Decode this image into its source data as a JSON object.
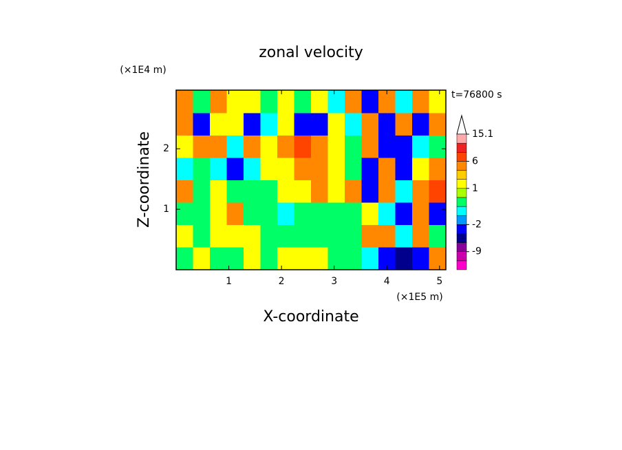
{
  "chart_data": {
    "type": "contourf",
    "title": "zonal velocity",
    "xlabel": "X-coordinate",
    "ylabel": "Z-coordinate",
    "x_unit": "(×1E5 m)",
    "y_unit": "(×1E4 m)",
    "annotation": "t=76800 s",
    "xlim": [
      0,
      5.12
    ],
    "ylim": [
      0,
      2.97
    ],
    "xticks": [
      1,
      2,
      3,
      4,
      5
    ],
    "yticks": [
      1,
      2
    ],
    "x": [
      0.16,
      0.48,
      0.8,
      1.12,
      1.44,
      1.76,
      2.08,
      2.4,
      2.72,
      3.04,
      3.36,
      3.68,
      4.0,
      4.32,
      4.64,
      4.96
    ],
    "y": [
      0.19,
      0.56,
      0.93,
      1.3,
      1.67,
      2.04,
      2.41,
      2.78
    ],
    "values": [
      [
        0,
        1.5,
        0,
        0,
        1.5,
        0,
        1.5,
        1.5,
        1.5,
        0,
        0,
        -0.8,
        -3,
        -5,
        -3,
        4.5
      ],
      [
        1.5,
        0,
        1.5,
        1.5,
        1.5,
        0,
        0,
        0,
        0,
        0,
        0,
        4.5,
        4.5,
        -0.8,
        4.5,
        0
      ],
      [
        0,
        0,
        1.5,
        4.5,
        0,
        0,
        -0.8,
        0,
        0,
        0,
        0,
        1.5,
        -0.8,
        -3,
        4.5,
        -3
      ],
      [
        4.5,
        0,
        1.5,
        0,
        0,
        0,
        1.5,
        1.5,
        4.5,
        1.5,
        4.5,
        -3,
        4.5,
        -0.8,
        4.5,
        8
      ],
      [
        -0.8,
        0,
        -0.8,
        -3,
        -0.8,
        1.5,
        1.5,
        4.5,
        4.5,
        1.5,
        0,
        -3,
        4.5,
        -3,
        1.5,
        4.5
      ],
      [
        1.5,
        4.5,
        4.5,
        -0.8,
        4.5,
        1.5,
        4.5,
        8,
        4.5,
        1.5,
        0,
        4.5,
        -3,
        -3,
        -0.8,
        0
      ],
      [
        4.5,
        -3,
        1.5,
        1.5,
        -3,
        -0.8,
        1.5,
        -3,
        -3,
        1.5,
        -0.8,
        4.5,
        -3,
        4.5,
        -3,
        4.5
      ],
      [
        4.5,
        0,
        4.5,
        1.5,
        1.5,
        0,
        1.5,
        0,
        1.5,
        -0.8,
        4.5,
        -3,
        4.5,
        -0.8,
        4.5,
        1.5
      ]
    ],
    "levels": [
      -15,
      -12,
      -9,
      -6,
      -4,
      -2,
      -1,
      -0.5,
      0.5,
      1,
      2,
      4,
      6,
      9,
      12,
      15.1
    ],
    "colors": [
      "#ff00cc",
      "#cc00aa",
      "#880099",
      "#00008c",
      "#0000ff",
      "#0099ff",
      "#00ffff",
      "#00ff66",
      "#aaff00",
      "#ffff00",
      "#ffcc00",
      "#ff8800",
      "#ff4400",
      "#ee2222",
      "#ffaaaa"
    ],
    "cbar_ticks": [
      -9,
      -2,
      1,
      6,
      15.1
    ]
  }
}
